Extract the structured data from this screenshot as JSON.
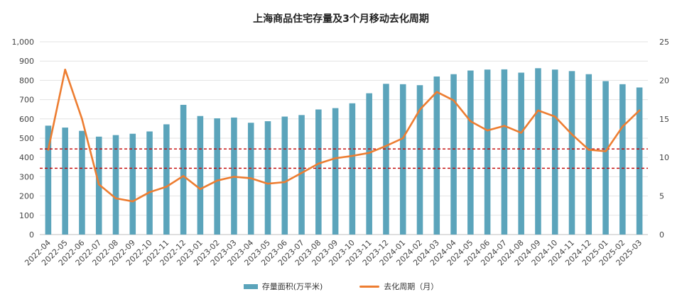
{
  "chart_data": {
    "type": "bar",
    "title": "上海商品住宅存量及3个月移动去化周期",
    "categories": [
      "2022-04",
      "2022-05",
      "2022-06",
      "2022-07",
      "2022-08",
      "2022-09",
      "2022-10",
      "2022-11",
      "2022-12",
      "2023-01",
      "2023-02",
      "2023-03",
      "2023-04",
      "2023-05",
      "2023-06",
      "2023-07",
      "2023-08",
      "2023-09",
      "2023-10",
      "2023-11",
      "2023-12",
      "2024-01",
      "2024-02",
      "2024-03",
      "2024-04",
      "2024-05",
      "2024-06",
      "2024-07",
      "2024-08",
      "2024-09",
      "2024-10",
      "2024-11",
      "2024-12",
      "2025-01",
      "2025-02",
      "2025-03"
    ],
    "series": [
      {
        "name": "存量面积(万平米)",
        "type": "bar",
        "axis": "left",
        "color": "#5ba4bb",
        "values": [
          565,
          555,
          538,
          508,
          516,
          523,
          535,
          572,
          673,
          615,
          603,
          607,
          580,
          588,
          612,
          620,
          649,
          656,
          681,
          733,
          782,
          780,
          775,
          820,
          832,
          851,
          856,
          857,
          840,
          863,
          856,
          848,
          832,
          796,
          780,
          763
        ]
      },
      {
        "name": "去化周期（月）",
        "type": "line",
        "axis": "right",
        "color": "#ed7d31",
        "values": [
          11.0,
          21.4,
          15.0,
          6.5,
          4.7,
          4.3,
          5.5,
          6.2,
          7.6,
          5.9,
          7.0,
          7.5,
          7.3,
          6.6,
          6.8,
          8.0,
          9.2,
          9.9,
          10.2,
          10.6,
          11.5,
          12.5,
          16.2,
          18.5,
          17.4,
          14.7,
          13.5,
          14.1,
          13.2,
          16.1,
          15.3,
          13.0,
          11.0,
          10.8,
          14.0,
          16.1
        ]
      }
    ],
    "ylim_left": [
      0,
      1000
    ],
    "ylim_right": [
      0,
      25
    ],
    "left_ticks": [
      "0",
      "100",
      "200",
      "300",
      "400",
      "500",
      "600",
      "700",
      "800",
      "900",
      "1,000"
    ],
    "right_ticks": [
      "0",
      "5",
      "10",
      "15",
      "20",
      "25"
    ],
    "reference_lines_right": [
      {
        "value": 11.1,
        "style": "dashed",
        "color": "#c00000"
      },
      {
        "value": 8.6,
        "style": "dashed",
        "color": "#c00000"
      }
    ],
    "grid": true,
    "legend_position": "bottom"
  }
}
